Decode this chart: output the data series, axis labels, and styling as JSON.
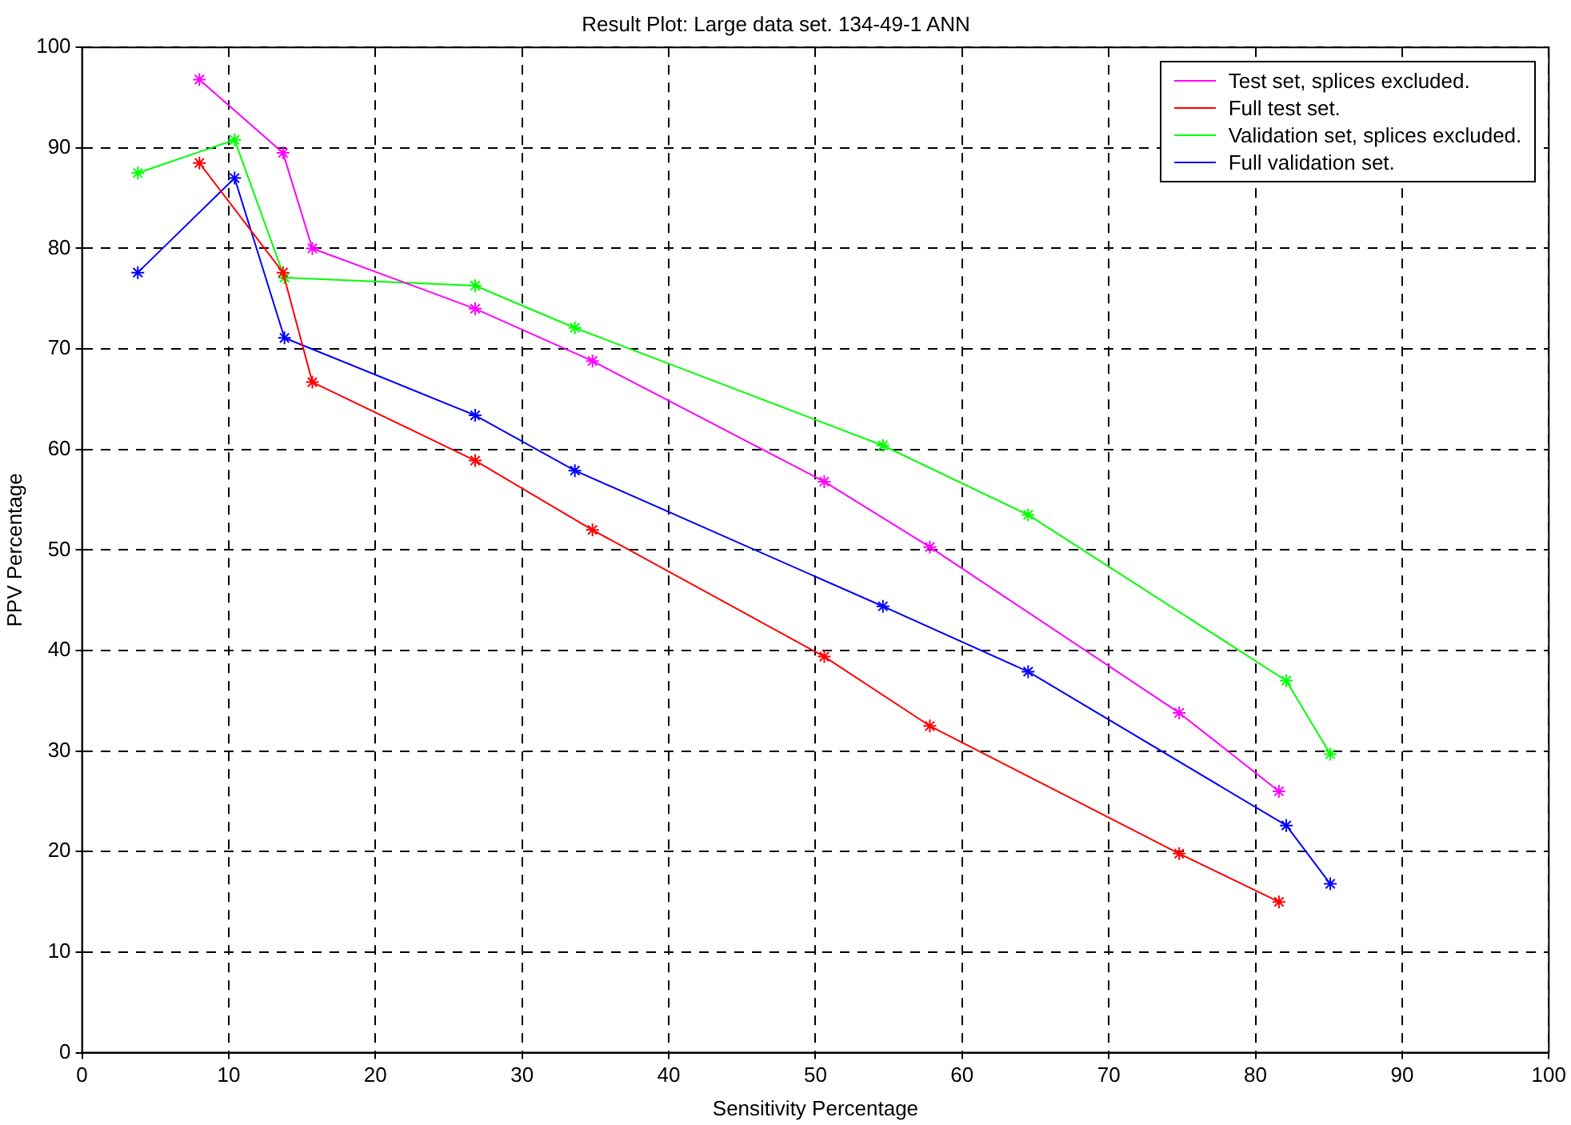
{
  "chart_data": {
    "type": "line",
    "title": "Result Plot: Large data set. 134-49-1 ANN",
    "xlabel": "Sensitivity Percentage",
    "ylabel": "PPV Percentage",
    "xlim": [
      0,
      100
    ],
    "xticks": [
      0,
      10,
      20,
      30,
      40,
      50,
      60,
      70,
      80,
      90,
      100
    ],
    "ylim": [
      0,
      100
    ],
    "yticks": [
      0,
      10,
      20,
      30,
      40,
      50,
      60,
      70,
      80,
      90,
      100
    ],
    "grid": true,
    "legend": "top right",
    "marker": "cross",
    "line_style": "solid",
    "series": [
      {
        "name": "Test set, splices excluded.",
        "color": "#ff00ff",
        "x": [
          8,
          13.7,
          15.7,
          26.8,
          34.8,
          50.6,
          57.8,
          74.8,
          81.6
        ],
        "values": [
          96.8,
          89.5,
          80,
          74,
          68.8,
          56.8,
          50.3,
          33.8,
          26
        ]
      },
      {
        "name": "Full test set.",
        "color": "#ff0000",
        "x": [
          8,
          13.7,
          15.7,
          26.8,
          34.8,
          50.6,
          57.8,
          74.8,
          81.6
        ],
        "values": [
          88.5,
          77.6,
          66.7,
          58.9,
          52,
          39.4,
          32.5,
          19.8,
          15
        ]
      },
      {
        "name": "Validation set, splices excluded.",
        "color": "#00ff00",
        "x": [
          3.8,
          10.4,
          13.8,
          26.8,
          33.6,
          54.6,
          64.5,
          82.1,
          85.1
        ],
        "values": [
          87.5,
          90.8,
          77.1,
          76.3,
          72.1,
          60.4,
          53.5,
          37,
          29.7
        ]
      },
      {
        "name": "Full validation set.",
        "color": "#0000ff",
        "x": [
          3.8,
          10.4,
          13.8,
          26.8,
          33.6,
          54.6,
          64.5,
          82.1,
          85.1
        ],
        "values": [
          77.6,
          87,
          71.1,
          63.4,
          57.9,
          44.4,
          37.9,
          22.6,
          16.8
        ]
      }
    ]
  }
}
